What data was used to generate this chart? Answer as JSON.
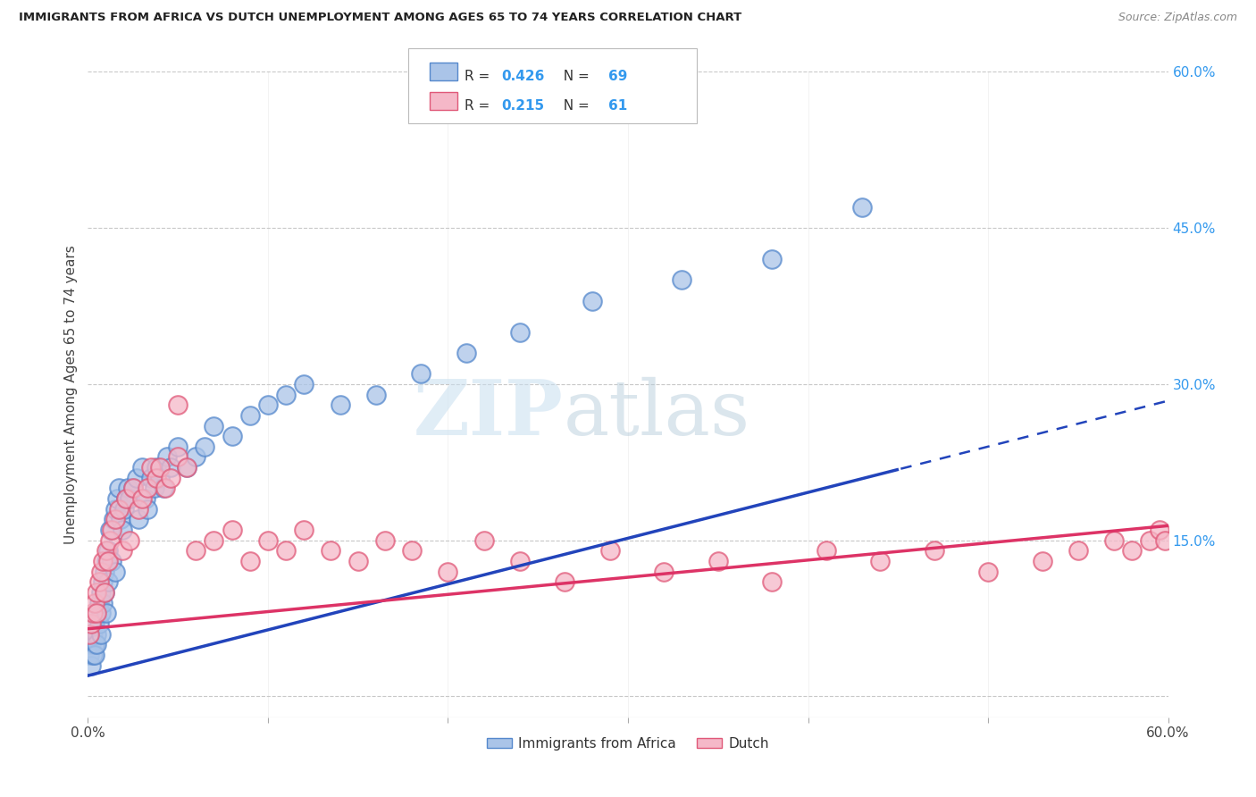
{
  "title": "IMMIGRANTS FROM AFRICA VS DUTCH UNEMPLOYMENT AMONG AGES 65 TO 74 YEARS CORRELATION CHART",
  "source": "Source: ZipAtlas.com",
  "ylabel": "Unemployment Among Ages 65 to 74 years",
  "x_min": 0.0,
  "x_max": 0.6,
  "y_min": -0.02,
  "y_max": 0.6,
  "x_tick_positions": [
    0.0,
    0.1,
    0.2,
    0.3,
    0.4,
    0.5,
    0.6
  ],
  "x_tick_labels": [
    "0.0%",
    "",
    "",
    "",
    "",
    "",
    "60.0%"
  ],
  "y_ticks_right": [
    0.6,
    0.45,
    0.3,
    0.15,
    0.0
  ],
  "y_tick_labels_right": [
    "60.0%",
    "45.0%",
    "30.0%",
    "15.0%",
    ""
  ],
  "grid_color": "#c8c8c8",
  "background_color": "#ffffff",
  "series1_color": "#aac4e8",
  "series1_edge": "#5588cc",
  "series2_color": "#f5b8c8",
  "series2_edge": "#e05878",
  "line1_color": "#2244bb",
  "line2_color": "#dd3366",
  "R1": 0.426,
  "N1": 69,
  "R2": 0.215,
  "N2": 61,
  "legend_label1": "Immigrants from Africa",
  "legend_label2": "Dutch",
  "watermark_zip": "ZIP",
  "watermark_atlas": "atlas",
  "series1_x": [
    0.001,
    0.002,
    0.002,
    0.003,
    0.003,
    0.004,
    0.004,
    0.004,
    0.005,
    0.005,
    0.005,
    0.006,
    0.006,
    0.007,
    0.007,
    0.007,
    0.008,
    0.008,
    0.009,
    0.009,
    0.01,
    0.01,
    0.011,
    0.011,
    0.012,
    0.013,
    0.014,
    0.015,
    0.015,
    0.016,
    0.017,
    0.018,
    0.019,
    0.02,
    0.021,
    0.022,
    0.023,
    0.025,
    0.027,
    0.028,
    0.03,
    0.032,
    0.033,
    0.035,
    0.037,
    0.038,
    0.04,
    0.042,
    0.044,
    0.046,
    0.05,
    0.055,
    0.06,
    0.065,
    0.07,
    0.08,
    0.09,
    0.1,
    0.11,
    0.12,
    0.14,
    0.16,
    0.185,
    0.21,
    0.24,
    0.28,
    0.33,
    0.38,
    0.43
  ],
  "series1_y": [
    0.04,
    0.05,
    0.03,
    0.06,
    0.04,
    0.07,
    0.05,
    0.04,
    0.08,
    0.06,
    0.05,
    0.09,
    0.07,
    0.1,
    0.08,
    0.06,
    0.11,
    0.09,
    0.12,
    0.1,
    0.13,
    0.08,
    0.14,
    0.11,
    0.16,
    0.13,
    0.17,
    0.18,
    0.12,
    0.19,
    0.2,
    0.17,
    0.16,
    0.18,
    0.19,
    0.2,
    0.19,
    0.2,
    0.21,
    0.17,
    0.22,
    0.19,
    0.18,
    0.21,
    0.2,
    0.22,
    0.21,
    0.2,
    0.23,
    0.22,
    0.24,
    0.22,
    0.23,
    0.24,
    0.26,
    0.25,
    0.27,
    0.28,
    0.29,
    0.3,
    0.28,
    0.29,
    0.31,
    0.33,
    0.35,
    0.38,
    0.4,
    0.42,
    0.47
  ],
  "series2_x": [
    0.001,
    0.002,
    0.003,
    0.004,
    0.005,
    0.005,
    0.006,
    0.007,
    0.008,
    0.009,
    0.01,
    0.011,
    0.012,
    0.013,
    0.015,
    0.017,
    0.019,
    0.021,
    0.023,
    0.025,
    0.028,
    0.03,
    0.033,
    0.035,
    0.038,
    0.04,
    0.043,
    0.046,
    0.05,
    0.055,
    0.06,
    0.07,
    0.08,
    0.09,
    0.1,
    0.11,
    0.12,
    0.135,
    0.15,
    0.165,
    0.18,
    0.2,
    0.22,
    0.24,
    0.265,
    0.29,
    0.32,
    0.35,
    0.38,
    0.41,
    0.44,
    0.47,
    0.5,
    0.53,
    0.55,
    0.57,
    0.58,
    0.59,
    0.595,
    0.598,
    0.05
  ],
  "series2_y": [
    0.06,
    0.07,
    0.08,
    0.09,
    0.1,
    0.08,
    0.11,
    0.12,
    0.13,
    0.1,
    0.14,
    0.13,
    0.15,
    0.16,
    0.17,
    0.18,
    0.14,
    0.19,
    0.15,
    0.2,
    0.18,
    0.19,
    0.2,
    0.22,
    0.21,
    0.22,
    0.2,
    0.21,
    0.23,
    0.22,
    0.14,
    0.15,
    0.16,
    0.13,
    0.15,
    0.14,
    0.16,
    0.14,
    0.13,
    0.15,
    0.14,
    0.12,
    0.15,
    0.13,
    0.11,
    0.14,
    0.12,
    0.13,
    0.11,
    0.14,
    0.13,
    0.14,
    0.12,
    0.13,
    0.14,
    0.15,
    0.14,
    0.15,
    0.16,
    0.15,
    0.28
  ]
}
